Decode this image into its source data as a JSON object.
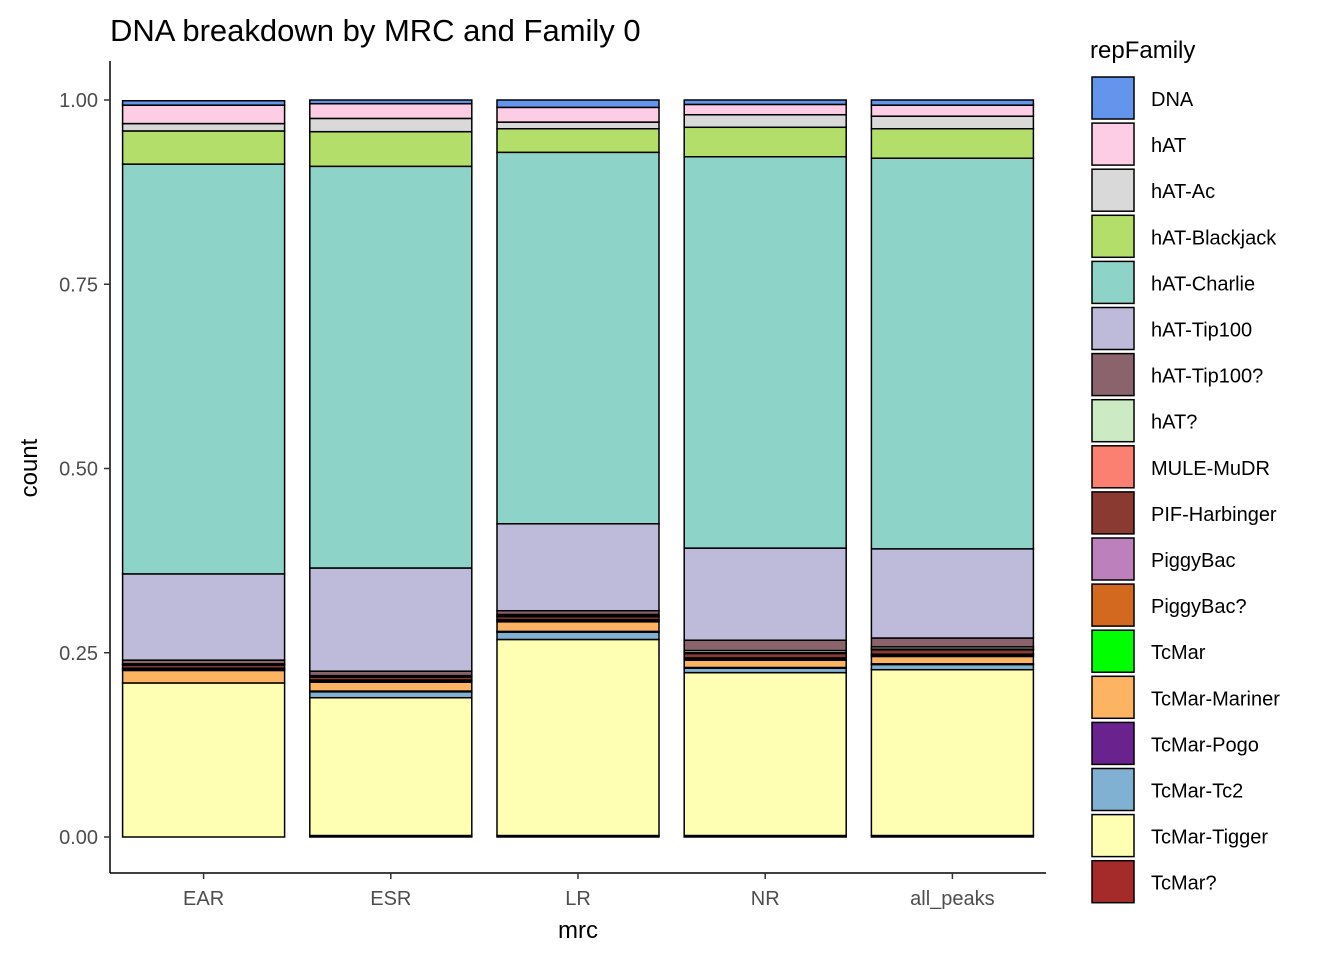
{
  "chart_data": {
    "type": "bar",
    "stacked": true,
    "title": "DNA breakdown by MRC and Family 0",
    "xlabel": "mrc",
    "ylabel": "count",
    "ylim": [
      0,
      1.0
    ],
    "yticks": [
      "0.00",
      "0.25",
      "0.50",
      "0.75",
      "1.00"
    ],
    "grid": false,
    "legend_position": "right",
    "legend_title": "repFamily",
    "categories": [
      "EAR",
      "ESR",
      "LR",
      "NR",
      "all_peaks"
    ],
    "series": [
      {
        "name": "TcMar?",
        "color": "#A52A2A",
        "values": [
          0.0,
          0.002,
          0.002,
          0.002,
          0.002
        ]
      },
      {
        "name": "TcMar-Tigger",
        "color": "#FFFFB3",
        "values": [
          0.209,
          0.187,
          0.266,
          0.221,
          0.225
        ]
      },
      {
        "name": "TcMar-Tc2",
        "color": "#80B1D3",
        "values": [
          0.0,
          0.008,
          0.01,
          0.006,
          0.007
        ]
      },
      {
        "name": "TcMar-Pogo",
        "color": "#6A228E",
        "values": [
          0.0,
          0.001,
          0.001,
          0.001,
          0.001
        ]
      },
      {
        "name": "TcMar-Mariner",
        "color": "#FDB462",
        "values": [
          0.017,
          0.012,
          0.013,
          0.01,
          0.01
        ]
      },
      {
        "name": "TcMar",
        "color": "#00FF00",
        "values": [
          0.0,
          0.0,
          0.0,
          0.0,
          0.0
        ]
      },
      {
        "name": "PiggyBac?",
        "color": "#D2691E",
        "values": [
          0.002,
          0.002,
          0.002,
          0.002,
          0.002
        ]
      },
      {
        "name": "PiggyBac",
        "color": "#BC80BD",
        "values": [
          0.001,
          0.001,
          0.001,
          0.001,
          0.001
        ]
      },
      {
        "name": "PIF-Harbinger",
        "color": "#8B3A32",
        "values": [
          0.004,
          0.004,
          0.004,
          0.006,
          0.006
        ]
      },
      {
        "name": "MULE-MuDR",
        "color": "#FB8072",
        "values": [
          0.001,
          0.001,
          0.001,
          0.001,
          0.001
        ]
      },
      {
        "name": "hAT?",
        "color": "#CCEBC5",
        "values": [
          0.001,
          0.001,
          0.002,
          0.003,
          0.003
        ]
      },
      {
        "name": "hAT-Tip100?",
        "color": "#8B636C",
        "values": [
          0.005,
          0.006,
          0.005,
          0.014,
          0.012
        ]
      },
      {
        "name": "hAT-Tip100",
        "color": "#BEBADA",
        "values": [
          0.117,
          0.14,
          0.118,
          0.125,
          0.121
        ]
      },
      {
        "name": "hAT-Charlie",
        "color": "#8DD3C7",
        "values": [
          0.556,
          0.545,
          0.504,
          0.531,
          0.53
        ]
      },
      {
        "name": "hAT-Blackjack",
        "color": "#B3DE69",
        "values": [
          0.045,
          0.047,
          0.032,
          0.04,
          0.04
        ]
      },
      {
        "name": "hAT-Ac",
        "color": "#D9D9D9",
        "values": [
          0.01,
          0.018,
          0.009,
          0.017,
          0.017
        ]
      },
      {
        "name": "hAT",
        "color": "#FCCDE5",
        "values": [
          0.025,
          0.02,
          0.02,
          0.014,
          0.015
        ]
      },
      {
        "name": "DNA",
        "color": "#6495ED",
        "values": [
          0.006,
          0.005,
          0.01,
          0.006,
          0.007
        ]
      }
    ]
  },
  "legend_items": [
    {
      "label": "DNA",
      "color": "#6495ED"
    },
    {
      "label": "hAT",
      "color": "#FCCDE5"
    },
    {
      "label": "hAT-Ac",
      "color": "#D9D9D9"
    },
    {
      "label": "hAT-Blackjack",
      "color": "#B3DE69"
    },
    {
      "label": "hAT-Charlie",
      "color": "#8DD3C7"
    },
    {
      "label": "hAT-Tip100",
      "color": "#BEBADA"
    },
    {
      "label": "hAT-Tip100?",
      "color": "#8B636C"
    },
    {
      "label": "hAT?",
      "color": "#CCEBC5"
    },
    {
      "label": "MULE-MuDR",
      "color": "#FB8072"
    },
    {
      "label": "PIF-Harbinger",
      "color": "#8B3A32"
    },
    {
      "label": "PiggyBac",
      "color": "#BC80BD"
    },
    {
      "label": "PiggyBac?",
      "color": "#D2691E"
    },
    {
      "label": "TcMar",
      "color": "#00FF00"
    },
    {
      "label": "TcMar-Mariner",
      "color": "#FDB462"
    },
    {
      "label": "TcMar-Pogo",
      "color": "#6A228E"
    },
    {
      "label": "TcMar-Tc2",
      "color": "#80B1D3"
    },
    {
      "label": "TcMar-Tigger",
      "color": "#FFFFB3"
    },
    {
      "label": "TcMar?",
      "color": "#A52A2A"
    }
  ]
}
